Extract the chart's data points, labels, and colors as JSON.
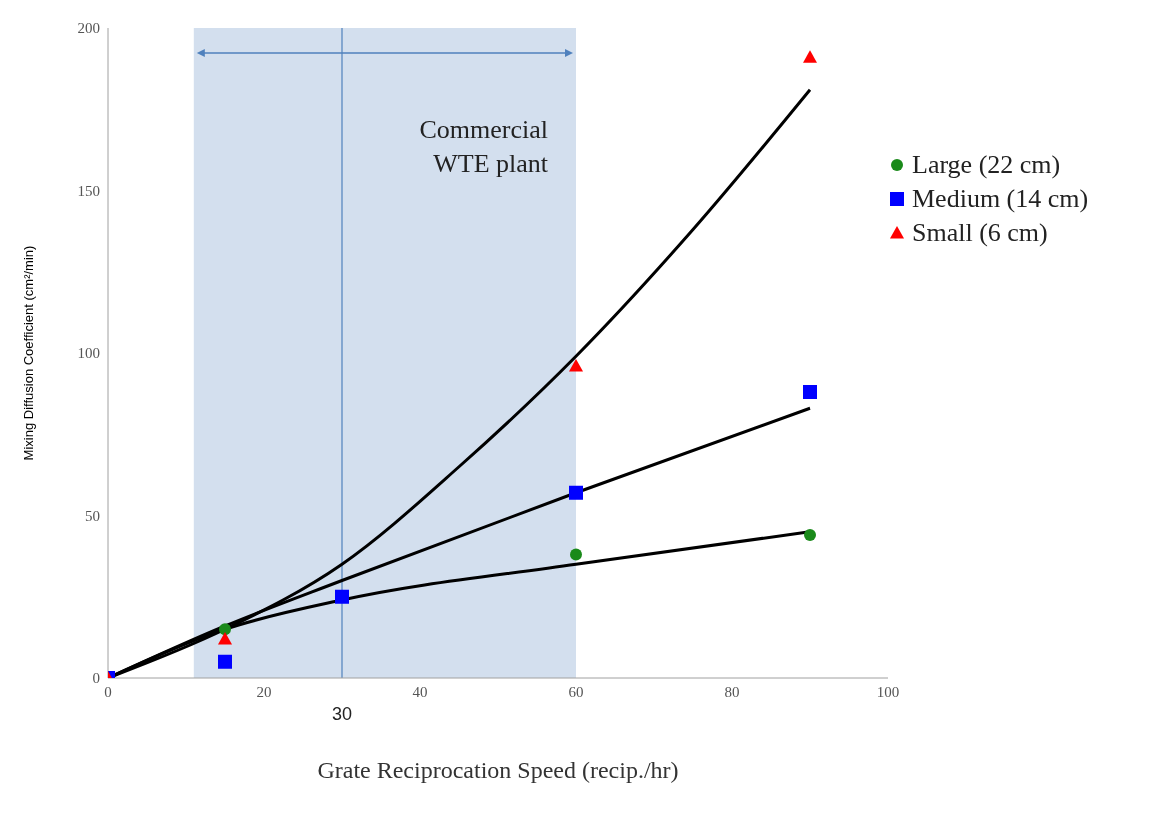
{
  "chart_data": {
    "type": "scatter",
    "xlabel": "Grate Reciprocation Speed (recip./hr)",
    "ylabel": "Mixing Diffusion Coefficient (cm²/min)",
    "xlim": [
      0,
      100
    ],
    "xticks": [
      0,
      20,
      40,
      60,
      80,
      100
    ],
    "ylim": [
      0,
      200
    ],
    "yticks": [
      0,
      50,
      100,
      150,
      200
    ],
    "legend": "right",
    "series": [
      {
        "name": "Large (22 cm)",
        "color": "#1a8a1a",
        "marker": "circle",
        "x": [
          15,
          60,
          90
        ],
        "values": [
          15,
          38,
          44
        ]
      },
      {
        "name": "Medium (14 cm)",
        "color": "#0000ff",
        "marker": "square",
        "x": [
          0,
          15,
          30,
          60,
          90
        ],
        "values": [
          0,
          5,
          25,
          57,
          88
        ]
      },
      {
        "name": "Small (6 cm)",
        "color": "#ff0000",
        "marker": "triangle",
        "x": [
          0,
          15,
          60,
          90
        ],
        "values": [
          0,
          12,
          96,
          191
        ]
      },
      {
        "type": "line",
        "color": "#000000",
        "marker": "none",
        "x": [
          0,
          15,
          30,
          60,
          90
        ],
        "values": [
          0,
          15,
          24,
          35,
          45
        ]
      },
      {
        "type": "line",
        "color": "#000000",
        "marker": "none",
        "x": [
          0,
          15,
          30,
          60,
          90
        ],
        "values": [
          0,
          16,
          30,
          57,
          83
        ]
      },
      {
        "type": "line",
        "color": "#000000",
        "marker": "none",
        "x": [
          0,
          15,
          30,
          45,
          60,
          75,
          90
        ],
        "values": [
          0,
          15,
          35,
          65,
          99,
          138,
          181
        ]
      }
    ],
    "bands": [
      {
        "axis": "x",
        "from": 11,
        "to": 60,
        "label": "Commercial WTE plant",
        "color": "#d3dfee"
      }
    ],
    "ref_lines": [
      {
        "axis": "x",
        "value": 30,
        "label": "30",
        "color": "#4f81bd"
      }
    ]
  }
}
